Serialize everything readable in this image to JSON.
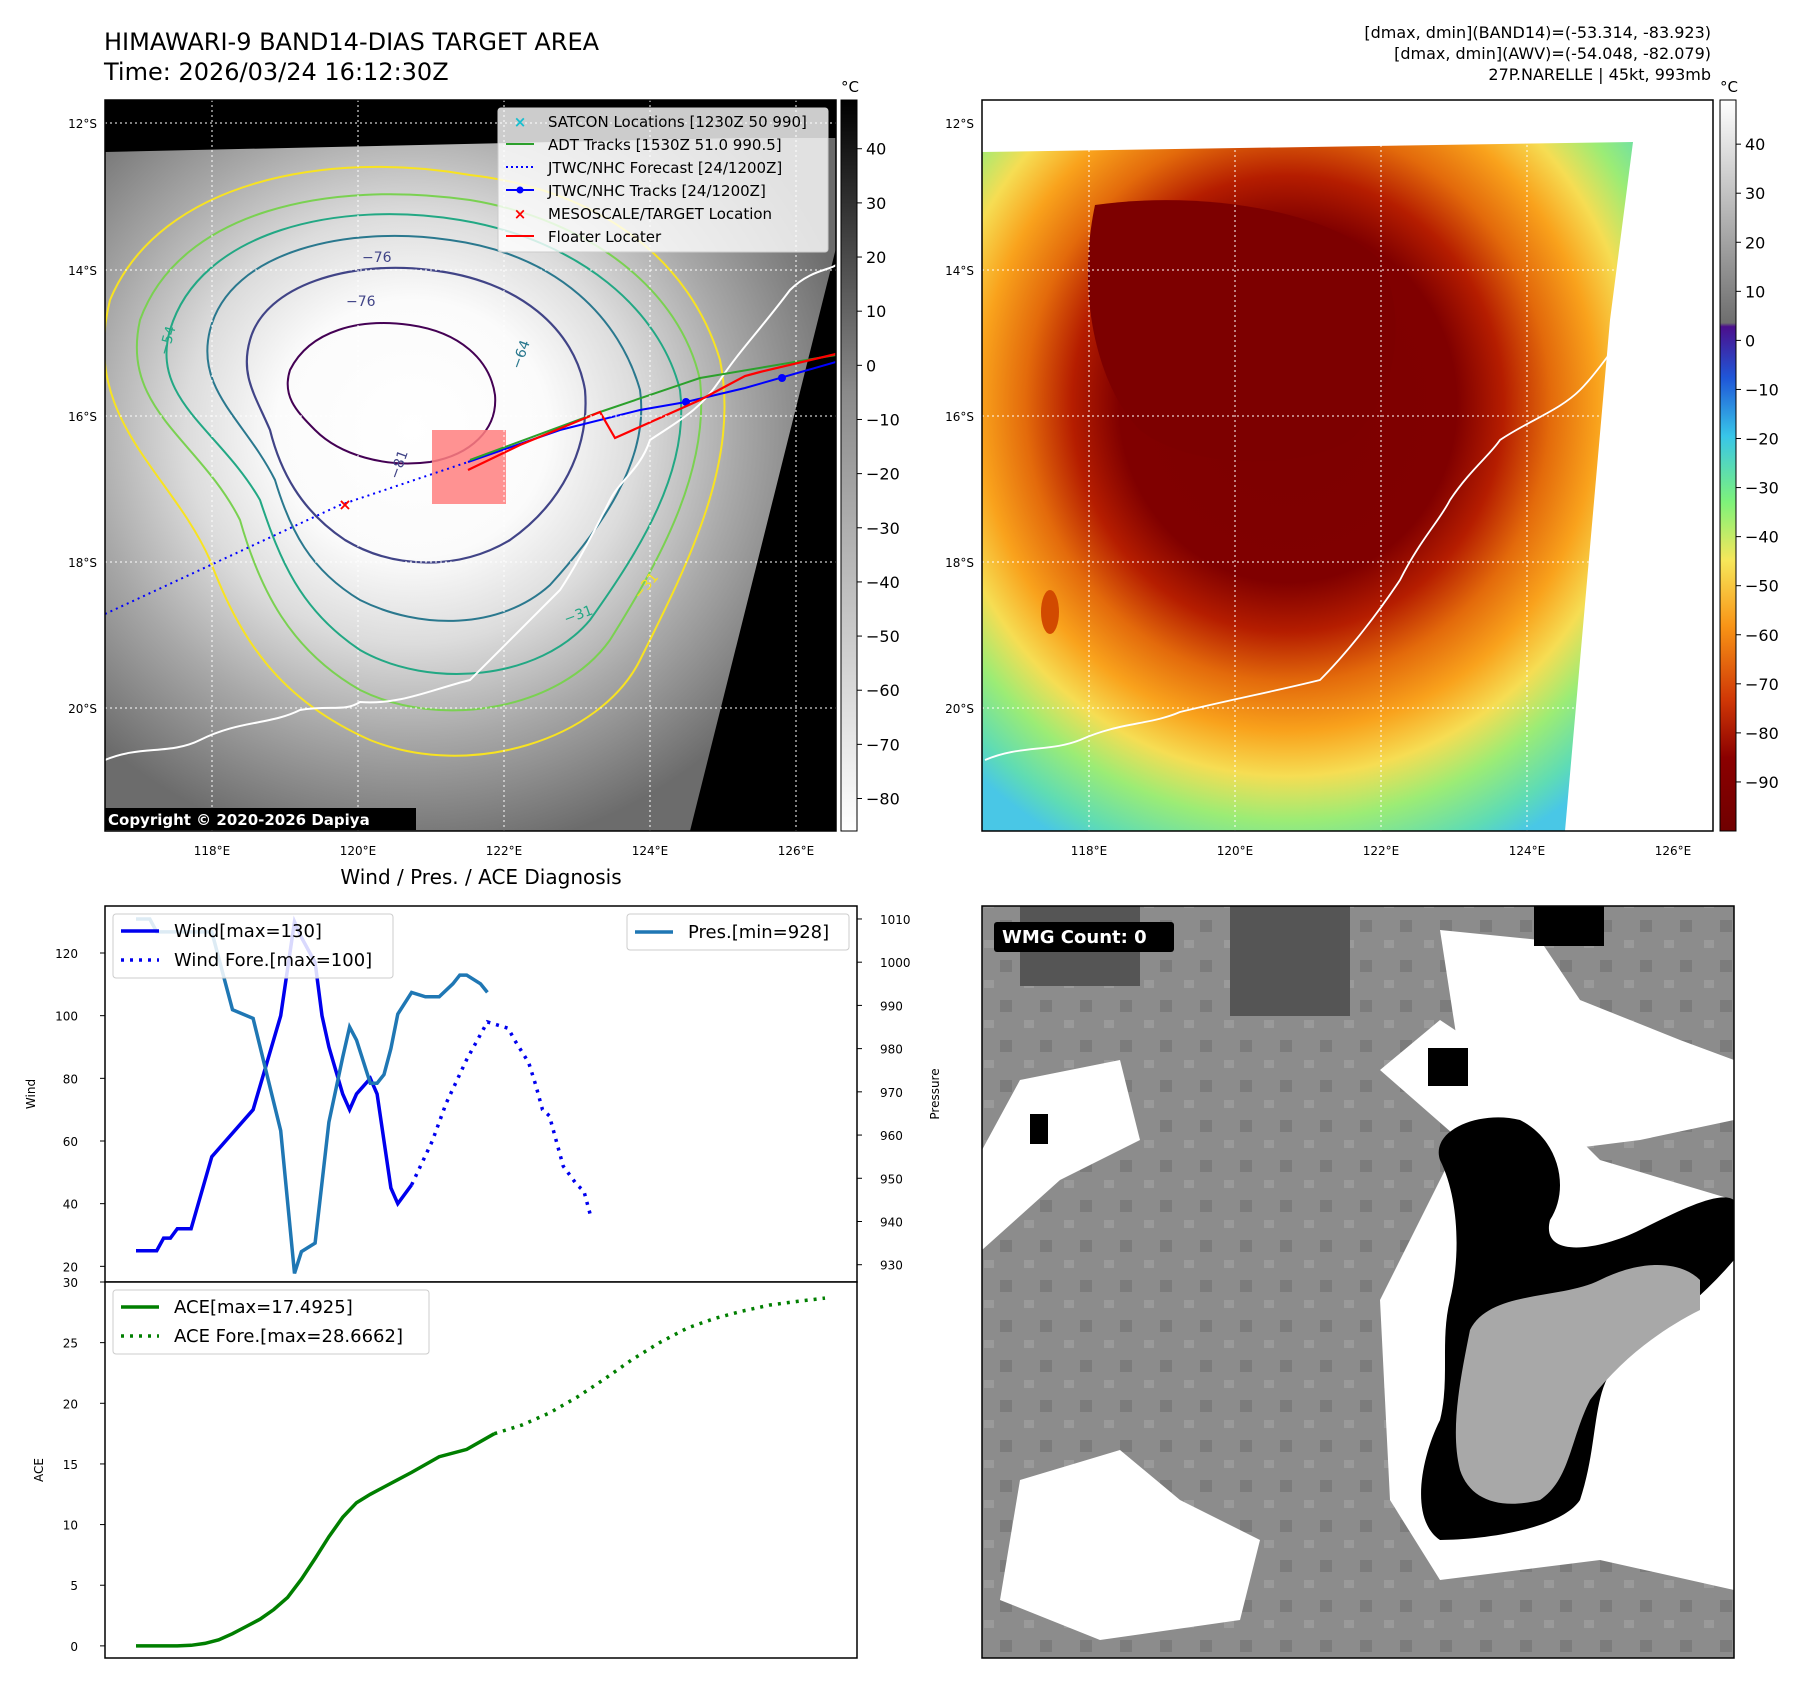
{
  "header": {
    "title_line1": "HIMAWARI-9 BAND14-DIAS TARGET AREA",
    "title_line2": "Time: 2026/03/24 16:12:30Z",
    "info_line1": "[dmax, dmin](BAND14)=(-53.314, -83.923)",
    "info_line2": "[dmax, dmin](AWV)=(-54.048, -82.079)",
    "info_line3": "27P.NARELLE | 45kt, 993mb"
  },
  "map_axes": {
    "lat_ticks": [
      "12°S",
      "14°S",
      "16°S",
      "18°S",
      "20°S"
    ],
    "lon_ticks": [
      "118°E",
      "120°E",
      "122°E",
      "124°E",
      "126°E"
    ]
  },
  "ir_panel": {
    "colorbar_unit": "°C",
    "colorbar_ticks": [
      "40",
      "30",
      "20",
      "10",
      "0",
      "−10",
      "−20",
      "−30",
      "−40",
      "−50",
      "−60",
      "−70",
      "−80"
    ],
    "copyright": "Copyright © 2020-2026 Dapiya",
    "contour_labels": [
      "−76",
      "−76",
      "−54",
      "−64",
      "−81",
      "−31",
      "−31"
    ],
    "legend": [
      "SATCON Locations [1230Z 50 990]",
      "ADT Tracks [1530Z 51.0 990.5]",
      "JTWC/NHC Forecast [24/1200Z]",
      "JTWC/NHC Tracks [24/1200Z]",
      "MESOSCALE/TARGET Location",
      "Floater Locater"
    ],
    "colors": {
      "satcon": "#17becf",
      "adt": "#2ca02c",
      "forecast": "#0000ff",
      "tracks": "#0000ff",
      "target": "#ff0000",
      "floater": "#ff0000",
      "box": "#ff7f7f"
    }
  },
  "awv_panel": {
    "colorbar_unit": "°C",
    "colorbar_ticks": [
      "40",
      "30",
      "20",
      "10",
      "0",
      "−10",
      "−20",
      "−30",
      "−40",
      "−50",
      "−60",
      "−70",
      "−80",
      "−90"
    ]
  },
  "wmg_panel": {
    "count_label": "WMG Count: 0"
  },
  "chart_data": [
    {
      "type": "line",
      "title": "Wind / Pres. / ACE Diagnosis",
      "ylabel": "Wind",
      "y2label": "Pressure",
      "ylim": [
        15,
        135
      ],
      "y2lim": [
        926,
        1013
      ],
      "yticks": [
        20,
        40,
        60,
        80,
        100,
        120
      ],
      "y2ticks": [
        930,
        940,
        950,
        960,
        970,
        980,
        990,
        1000,
        1010
      ],
      "legend_left": [
        "Wind[max=130]",
        "Wind Fore.[max=100]"
      ],
      "legend_right": [
        "Pres.[min=928]"
      ],
      "series": [
        {
          "name": "Wind[max=130]",
          "color": "#0000ee",
          "style": "solid",
          "axis": "left",
          "x": [
            0,
            3,
            4,
            5,
            6,
            8,
            11,
            17,
            19,
            21,
            23,
            24,
            26,
            27,
            28,
            30,
            31,
            32,
            34,
            35,
            36,
            37,
            38,
            40
          ],
          "y": [
            25,
            25,
            29,
            29,
            32,
            32,
            55,
            70,
            85,
            100,
            130,
            125,
            117,
            100,
            90,
            75,
            70,
            75,
            80,
            75,
            60,
            45,
            40,
            46
          ]
        },
        {
          "name": "Wind Fore.[max=100]",
          "color": "#0000ee",
          "style": "dotted",
          "axis": "left",
          "x": [
            40,
            43,
            45,
            48,
            51,
            54,
            55,
            57,
            58,
            59,
            60,
            61,
            62,
            64,
            65,
            66
          ],
          "y": [
            46,
            60,
            72,
            86,
            98,
            96,
            92,
            85,
            78,
            70,
            68,
            60,
            52,
            46,
            44,
            36
          ]
        },
        {
          "name": "Pres.[min=928]",
          "color": "#1f77b4",
          "style": "solid",
          "axis": "right",
          "x": [
            0,
            2,
            3,
            6,
            11,
            14,
            17,
            19,
            21,
            23,
            24,
            26,
            28,
            30,
            31,
            32,
            34,
            35,
            36,
            37,
            38,
            40,
            42,
            43,
            44,
            46,
            47,
            48,
            50,
            51
          ],
          "y": [
            1010,
            1010,
            1007,
            1007,
            1007,
            989,
            987,
            974,
            961,
            928,
            933,
            935,
            963,
            978,
            985,
            982,
            972,
            972,
            974,
            980,
            988,
            993,
            992,
            992,
            992,
            995,
            997,
            997,
            995,
            993
          ]
        }
      ]
    },
    {
      "type": "line",
      "ylabel": "ACE",
      "ylim": [
        -1,
        30
      ],
      "yticks": [
        0,
        5,
        10,
        15,
        20,
        25,
        30
      ],
      "legend": [
        "ACE[max=17.4925]",
        "ACE Fore.[max=28.6662]"
      ],
      "series": [
        {
          "name": "ACE[max=17.4925]",
          "color": "#007f00",
          "style": "solid",
          "x": [
            0,
            6,
            8,
            10,
            12,
            14,
            16,
            18,
            20,
            22,
            24,
            26,
            28,
            30,
            32,
            34,
            36,
            38,
            40,
            44,
            48,
            52
          ],
          "y": [
            0,
            0,
            0.05,
            0.2,
            0.5,
            1.0,
            1.6,
            2.2,
            3.0,
            4.0,
            5.5,
            7.2,
            9.0,
            10.6,
            11.8,
            12.5,
            13.1,
            13.7,
            14.3,
            15.6,
            16.2,
            17.49
          ]
        },
        {
          "name": "ACE Fore.[max=28.6662]",
          "color": "#007f00",
          "style": "dotted",
          "x": [
            52,
            56,
            60,
            64,
            68,
            72,
            76,
            80,
            84,
            88,
            92,
            96,
            100
          ],
          "y": [
            17.49,
            18.2,
            19.2,
            20.5,
            22.0,
            23.6,
            25.0,
            26.2,
            27.0,
            27.6,
            28.1,
            28.4,
            28.67
          ]
        }
      ]
    }
  ]
}
